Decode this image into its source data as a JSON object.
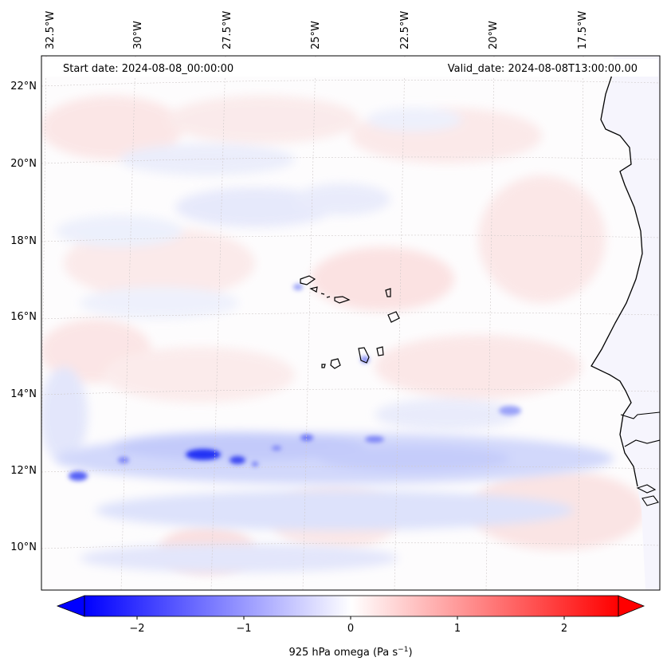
{
  "header": {
    "start_date": "Start date: 2024-08-08_00:00:00",
    "valid_date": "Valid_date: 2024-08-08T13:00:00.00"
  },
  "map": {
    "lon_labels": [
      "32.5°W",
      "30°W",
      "27.5°W",
      "25°W",
      "22.5°W",
      "20°W",
      "17.5°W"
    ],
    "lat_labels": [
      "22°N",
      "20°N",
      "18°N",
      "16°N",
      "14°N",
      "12°N",
      "10°N"
    ],
    "field_colors": {
      "negative": "#0000ff",
      "zero": "#ffffff",
      "positive": "#ff0000"
    },
    "coastline_color": "#000000"
  },
  "colorbar": {
    "ticks": [
      "−2",
      "−1",
      "0",
      "1",
      "2"
    ],
    "label_main": "925 hPa omega (Pa s",
    "label_sup": "−1",
    "label_end": ")",
    "range": [
      -2.5,
      2.5
    ]
  }
}
